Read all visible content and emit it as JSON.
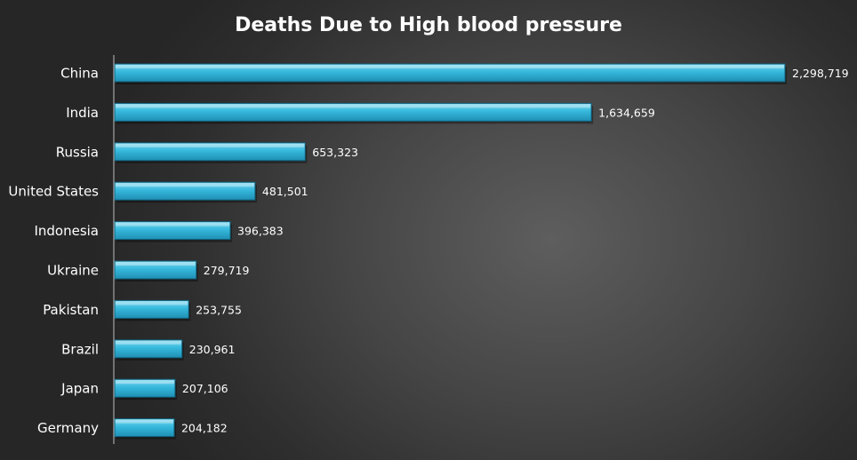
{
  "chart_data": {
    "type": "bar",
    "orientation": "horizontal",
    "title": "Deaths Due to High blood pressure",
    "categories": [
      "China",
      "India",
      "Russia",
      "United States",
      "Indonesia",
      "Ukraine",
      "Pakistan",
      "Brazil",
      "Japan",
      "Germany"
    ],
    "values": [
      2298719,
      1634659,
      653323,
      481501,
      396383,
      279719,
      253755,
      230961,
      207106,
      204182
    ],
    "value_labels": [
      "2,298,719",
      "1,634,659",
      "653,323",
      "481,501",
      "396,383",
      "279,719",
      "253,755",
      "230,961",
      "207,106",
      "204,182"
    ],
    "xlim": [
      0,
      2298719
    ],
    "grid": false,
    "legend": "none",
    "colors": {
      "bar_top": "#7fd8ef",
      "bar_mid": "#35b8dc",
      "bar_bottom": "#1f8fb3",
      "bar_edge": "#0f5f7a",
      "text": "#ffffff"
    }
  }
}
